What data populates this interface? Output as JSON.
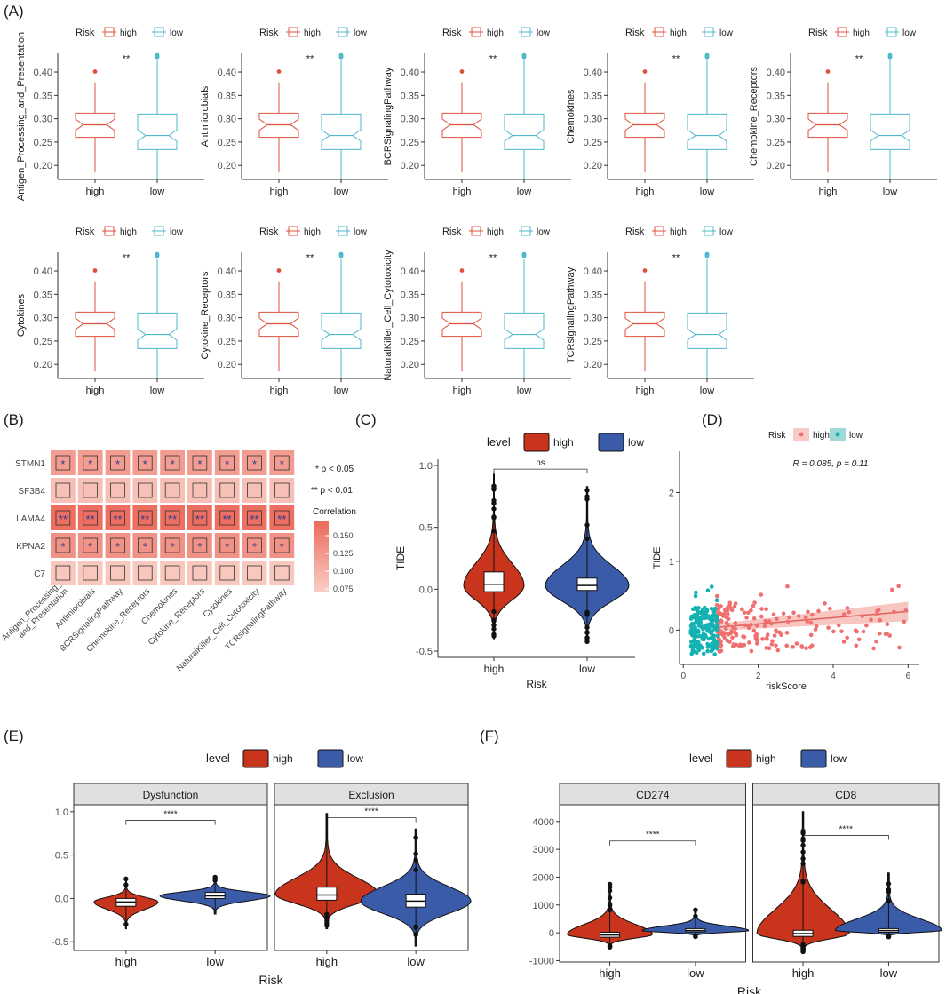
{
  "colors": {
    "high_box": "#E0503C",
    "low_box": "#4DB8CC",
    "high_violin": "#C8341C",
    "low_violin": "#3A5BA8",
    "scatter_high": "#F07070",
    "scatter_low": "#14B3B3",
    "heat_low": "#F9CFC7",
    "heat_high": "#EC6A5C",
    "strip_fill": "#E0E0E0"
  },
  "panel_labels": [
    "(A)",
    "(B)",
    "(C)",
    "(D)",
    "(E)",
    "(F)"
  ],
  "chart_data": [
    {
      "id": "A",
      "type": "box",
      "legend_title": "Risk",
      "groups": [
        "high",
        "low"
      ],
      "ylim": [
        0.17,
        0.44
      ],
      "yticks": [
        "0.20",
        "0.25",
        "0.30",
        "0.35",
        "0.40"
      ],
      "significance": "**",
      "stats": {
        "high": {
          "min": 0.185,
          "q1": 0.26,
          "median": 0.287,
          "q3": 0.312,
          "max": 0.378,
          "outliers": [
            0.401
          ]
        },
        "low": {
          "min": 0.172,
          "q1": 0.234,
          "median": 0.264,
          "q3": 0.31,
          "max": 0.425,
          "outliers": [
            0.432,
            0.434,
            0.436
          ]
        }
      },
      "panels": [
        {
          "ylabel": "Antigen_Processing_and_Presentation"
        },
        {
          "ylabel": "Antimicrobials"
        },
        {
          "ylabel": "BCRSignalingPathway"
        },
        {
          "ylabel": "Chemokines"
        },
        {
          "ylabel": "Chemokine_Receptors"
        },
        {
          "ylabel": "Cytokines"
        },
        {
          "ylabel": "Cytokine_Receptors"
        },
        {
          "ylabel": "NaturalKiller_Cell_Cytotoxicity"
        },
        {
          "ylabel": "TCRsignalingPathway"
        }
      ]
    },
    {
      "id": "B",
      "type": "heatmap",
      "rows": [
        "STMN1",
        "SF3B4",
        "LAMA4",
        "KPNA2",
        "C7"
      ],
      "columns": [
        "Antigen_Processing_\nand_Presentation",
        "Antimicrobials",
        "BCRSignalingPathway",
        "Chemokine_Receptors",
        "Chemokines",
        "Cytokine_Receptors",
        "Cytokines",
        "NaturalKiller_Cell_Cytotoxicity",
        "TCRsignalingPathway"
      ],
      "values": [
        [
          0.12,
          0.12,
          0.12,
          0.12,
          0.12,
          0.12,
          0.12,
          0.12,
          0.12
        ],
        [
          0.085,
          0.085,
          0.085,
          0.085,
          0.085,
          0.085,
          0.085,
          0.085,
          0.085
        ],
        [
          0.165,
          0.165,
          0.165,
          0.165,
          0.165,
          0.165,
          0.165,
          0.165,
          0.165
        ],
        [
          0.13,
          0.13,
          0.13,
          0.13,
          0.13,
          0.13,
          0.13,
          0.13,
          0.13
        ],
        [
          0.078,
          0.078,
          0.078,
          0.078,
          0.078,
          0.078,
          0.078,
          0.078,
          0.078
        ]
      ],
      "marks": [
        "*",
        "",
        "**",
        "*",
        ""
      ],
      "sig_legend": [
        "* p < 0.05",
        "** p < 0.01"
      ],
      "colorbar": {
        "title": "Correlation",
        "range": [
          0.07,
          0.17
        ],
        "ticks": [
          "0.150",
          "0.125",
          "0.100",
          "0.075"
        ]
      }
    },
    {
      "id": "C",
      "type": "violin",
      "legend_title": "level",
      "groups": [
        "high",
        "low"
      ],
      "ylabel": "TIDE",
      "xlabel": "Risk",
      "ylim": [
        -0.55,
        1.05
      ],
      "yticks": [
        "-0.5",
        "0.0",
        "0.5",
        "1.0"
      ],
      "significance": "ns",
      "stats": {
        "high": {
          "min": -0.4,
          "q1": -0.02,
          "median": 0.04,
          "q3": 0.14,
          "max": 0.93,
          "mode": 0.03
        },
        "low": {
          "min": -0.43,
          "q1": -0.01,
          "median": 0.03,
          "q3": 0.09,
          "max": 0.83,
          "mode": 0.03
        }
      }
    },
    {
      "id": "D",
      "type": "scatter",
      "legend_title": "Risk",
      "groups": [
        "high",
        "low"
      ],
      "annotation": "R = 0.085, p = 0.11",
      "xlabel": "riskScore",
      "ylabel": "TIDE",
      "xlim": [
        -0.1,
        6.3
      ],
      "ylim": [
        -0.5,
        2.6
      ],
      "xticks": [
        "0",
        "2",
        "4",
        "6"
      ],
      "yticks": [
        "0",
        "1",
        "2"
      ],
      "regression": {
        "intercept": 0.0,
        "slope": 0.045,
        "x_range": [
          0.9,
          6.0
        ]
      },
      "low_x_range": [
        0.2,
        0.95
      ],
      "high_x_range": [
        0.9,
        6.0
      ]
    },
    {
      "id": "E",
      "type": "violin_facet",
      "legend_title": "level",
      "groups": [
        "high",
        "low"
      ],
      "xlabel": "Risk",
      "ylim": [
        -0.6,
        1.08
      ],
      "yticks": [
        "-0.5",
        "0.0",
        "0.5",
        "1.0"
      ],
      "facets": [
        {
          "title": "Dysfunction",
          "significance": "****",
          "stats": {
            "high": {
              "min": -0.35,
              "q1": -0.09,
              "median": -0.04,
              "q3": 0.0,
              "max": 0.23,
              "mode": -0.04
            },
            "low": {
              "min": -0.18,
              "q1": 0.0,
              "median": 0.03,
              "q3": 0.07,
              "max": 0.26,
              "mode": 0.03
            }
          }
        },
        {
          "title": "Exclusion",
          "significance": "****",
          "stats": {
            "high": {
              "min": -0.35,
              "q1": -0.02,
              "median": 0.04,
              "q3": 0.13,
              "max": 0.98,
              "mode": 0.05
            },
            "low": {
              "min": -0.55,
              "q1": -0.1,
              "median": -0.03,
              "q3": 0.05,
              "max": 0.8,
              "mode": -0.03
            }
          }
        }
      ]
    },
    {
      "id": "F",
      "type": "violin_facet",
      "legend_title": "level",
      "groups": [
        "high",
        "low"
      ],
      "xlabel": "Risk",
      "ylim": [
        -1050,
        4600
      ],
      "yticks": [
        "-1000",
        "0",
        "1000",
        "2000",
        "3000",
        "4000"
      ],
      "facets": [
        {
          "title": "CD274",
          "significance": "****",
          "stats": {
            "high": {
              "min": -550,
              "q1": -160,
              "median": -80,
              "q3": 20,
              "max": 1750,
              "mode": -60
            },
            "low": {
              "min": -150,
              "q1": 30,
              "median": 80,
              "q3": 150,
              "max": 880,
              "mode": 80
            }
          }
        },
        {
          "title": "CD8",
          "significance": "****",
          "stats": {
            "high": {
              "min": -700,
              "q1": -130,
              "median": -30,
              "q3": 90,
              "max": 4350,
              "mode": -30
            },
            "low": {
              "min": -150,
              "q1": 20,
              "median": 80,
              "q3": 150,
              "max": 2150,
              "mode": 80
            }
          }
        }
      ]
    }
  ]
}
